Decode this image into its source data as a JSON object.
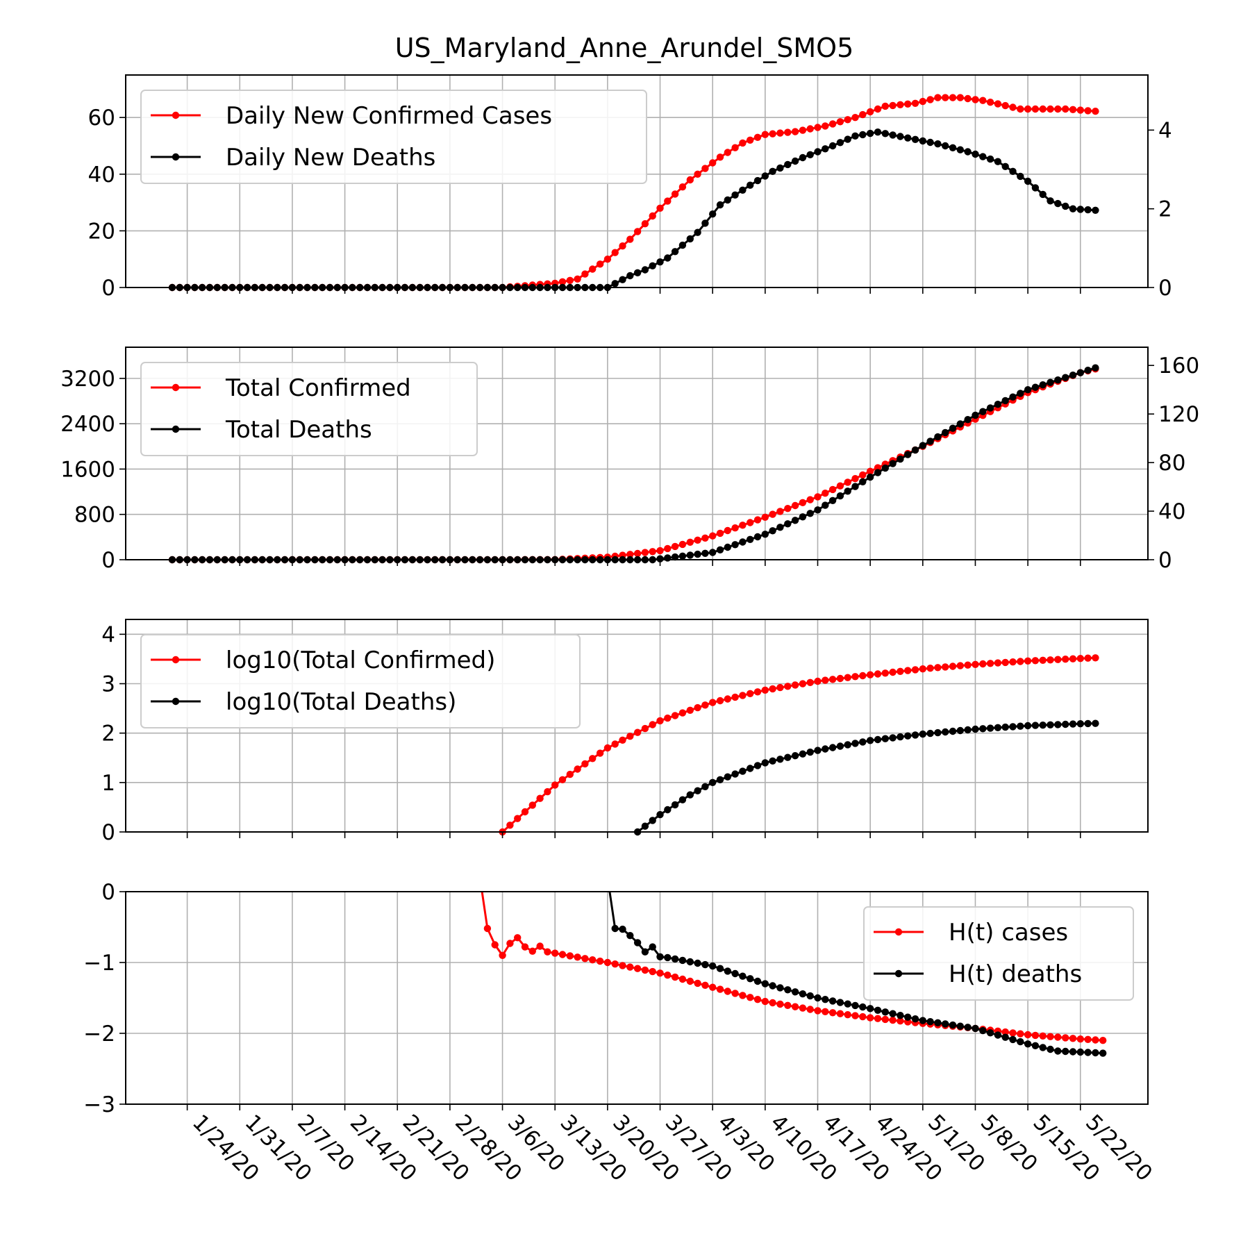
{
  "figure": {
    "title": "US_Maryland_Anne_Arundel_SMO5"
  },
  "chart_data": [
    {
      "type": "line",
      "name": "daily",
      "x_start": "2020-01-22",
      "days": 124,
      "xtick_labels": [
        "1/24/20",
        "1/31/20",
        "2/7/20",
        "2/14/20",
        "2/21/20",
        "2/28/20",
        "3/6/20",
        "3/13/20",
        "3/20/20",
        "3/27/20",
        "4/3/20",
        "4/10/20",
        "4/17/20",
        "4/24/20",
        "5/1/20",
        "5/8/20",
        "5/15/20",
        "5/22/20"
      ],
      "ylim_left": [
        0,
        75
      ],
      "yticks_left": [
        "0",
        "20",
        "40",
        "60"
      ],
      "ylim_right": [
        0,
        5.4
      ],
      "yticks_right": [
        "0",
        "2",
        "4"
      ],
      "legend": {
        "position": "top-left",
        "entries": [
          "Daily New Confirmed Cases",
          "Daily New Deaths"
        ]
      },
      "series": [
        {
          "name": "Daily New Confirmed Cases",
          "color": "#ff0000",
          "axis": "left",
          "knots": [
            [
              "2020-01-22",
              0
            ],
            [
              "2020-03-06",
              0
            ],
            [
              "2020-03-13",
              1.5
            ],
            [
              "2020-03-16",
              3
            ],
            [
              "2020-03-20",
              10
            ],
            [
              "2020-03-23",
              17
            ],
            [
              "2020-03-27",
              28
            ],
            [
              "2020-03-31",
              38
            ],
            [
              "2020-04-04",
              46
            ],
            [
              "2020-04-07",
              51
            ],
            [
              "2020-04-10",
              54
            ],
            [
              "2020-04-14",
              55
            ],
            [
              "2020-04-18",
              57
            ],
            [
              "2020-04-22",
              60
            ],
            [
              "2020-04-26",
              64
            ],
            [
              "2020-04-30",
              65
            ],
            [
              "2020-05-03",
              67
            ],
            [
              "2020-05-06",
              67
            ],
            [
              "2020-05-09",
              66
            ],
            [
              "2020-05-14",
              63
            ],
            [
              "2020-05-20",
              63
            ],
            [
              "2020-05-25",
              62
            ]
          ]
        },
        {
          "name": "Daily New Deaths",
          "color": "#000000",
          "axis": "right",
          "knots": [
            [
              "2020-01-22",
              0
            ],
            [
              "2020-03-20",
              0
            ],
            [
              "2020-03-23",
              0.3
            ],
            [
              "2020-03-25",
              0.45
            ],
            [
              "2020-03-28",
              0.75
            ],
            [
              "2020-04-01",
              1.4
            ],
            [
              "2020-04-04",
              2.1
            ],
            [
              "2020-04-08",
              2.6
            ],
            [
              "2020-04-11",
              2.95
            ],
            [
              "2020-04-15",
              3.3
            ],
            [
              "2020-04-19",
              3.6
            ],
            [
              "2020-04-22",
              3.85
            ],
            [
              "2020-04-25",
              3.95
            ],
            [
              "2020-04-29",
              3.8
            ],
            [
              "2020-05-03",
              3.65
            ],
            [
              "2020-05-07",
              3.45
            ],
            [
              "2020-05-11",
              3.2
            ],
            [
              "2020-05-15",
              2.7
            ],
            [
              "2020-05-18",
              2.2
            ],
            [
              "2020-05-21",
              2.0
            ],
            [
              "2020-05-25",
              1.95
            ]
          ]
        }
      ]
    },
    {
      "type": "line",
      "name": "totals",
      "ylim_left": [
        0,
        3750
      ],
      "yticks_left": [
        "0",
        "800",
        "1600",
        "2400",
        "3200"
      ],
      "ylim_right": [
        0,
        175
      ],
      "yticks_right": [
        "0",
        "40",
        "80",
        "120",
        "160"
      ],
      "legend": {
        "position": "top-left",
        "entries": [
          "Total Confirmed",
          "Total Deaths"
        ]
      },
      "series": [
        {
          "name": "Total Confirmed",
          "color": "#ff0000",
          "axis": "left",
          "knots": [
            [
              "2020-01-22",
              0
            ],
            [
              "2020-03-13",
              2
            ],
            [
              "2020-03-20",
              45
            ],
            [
              "2020-03-27",
              160
            ],
            [
              "2020-04-03",
              420
            ],
            [
              "2020-04-10",
              750
            ],
            [
              "2020-04-17",
              1110
            ],
            [
              "2020-04-24",
              1560
            ],
            [
              "2020-05-01",
              2000
            ],
            [
              "2020-05-08",
              2480
            ],
            [
              "2020-05-15",
              2950
            ],
            [
              "2020-05-22",
              3300
            ],
            [
              "2020-05-25",
              3400
            ]
          ]
        },
        {
          "name": "Total Deaths",
          "color": "#000000",
          "axis": "right",
          "knots": [
            [
              "2020-01-22",
              0
            ],
            [
              "2020-03-26",
              0
            ],
            [
              "2020-03-28",
              1.5
            ],
            [
              "2020-04-03",
              6
            ],
            [
              "2020-04-10",
              21
            ],
            [
              "2020-04-17",
              41
            ],
            [
              "2020-04-24",
              68
            ],
            [
              "2020-05-01",
              94
            ],
            [
              "2020-05-08",
              119
            ],
            [
              "2020-05-15",
              140
            ],
            [
              "2020-05-22",
              154
            ],
            [
              "2020-05-25",
              160
            ]
          ]
        }
      ]
    },
    {
      "type": "line",
      "name": "log10",
      "ylim": [
        0,
        4.3
      ],
      "yticks": [
        "0",
        "1",
        "2",
        "3",
        "4"
      ],
      "legend": {
        "position": "top-left",
        "entries": [
          "log10(Total Confirmed)",
          "log10(Total Deaths)"
        ]
      },
      "series": [
        {
          "name": "log10(Total Confirmed)",
          "color": "#ff0000",
          "start": "2020-03-06",
          "start_value": 0,
          "knots": [
            [
              "2020-03-06",
              0
            ],
            [
              "2020-03-13",
              0.95
            ],
            [
              "2020-03-20",
              1.7
            ],
            [
              "2020-03-27",
              2.25
            ],
            [
              "2020-04-03",
              2.62
            ],
            [
              "2020-04-10",
              2.87
            ],
            [
              "2020-04-17",
              3.05
            ],
            [
              "2020-04-24",
              3.18
            ],
            [
              "2020-05-01",
              3.3
            ],
            [
              "2020-05-08",
              3.39
            ],
            [
              "2020-05-15",
              3.46
            ],
            [
              "2020-05-22",
              3.51
            ],
            [
              "2020-05-25",
              3.53
            ]
          ]
        },
        {
          "name": "log10(Total Deaths)",
          "color": "#000000",
          "start": "2020-03-24",
          "start_value": 0,
          "knots": [
            [
              "2020-03-24",
              0
            ],
            [
              "2020-03-27",
              0.35
            ],
            [
              "2020-03-31",
              0.75
            ],
            [
              "2020-04-03",
              1.0
            ],
            [
              "2020-04-10",
              1.4
            ],
            [
              "2020-04-17",
              1.65
            ],
            [
              "2020-04-24",
              1.85
            ],
            [
              "2020-05-01",
              1.98
            ],
            [
              "2020-05-08",
              2.08
            ],
            [
              "2020-05-15",
              2.15
            ],
            [
              "2020-05-22",
              2.19
            ],
            [
              "2020-05-25",
              2.2
            ]
          ]
        }
      ]
    },
    {
      "type": "line",
      "name": "hazard",
      "ylim": [
        -3,
        0
      ],
      "yticks": [
        "0",
        "−1",
        "−2",
        "−3"
      ],
      "legend": {
        "position": "top-right",
        "entries": [
          "H(t) cases",
          "H(t) deaths"
        ]
      },
      "series": [
        {
          "name": "H(t) cases",
          "color": "#ff0000",
          "points": [
            [
              "2020-03-03",
              0.2
            ],
            [
              "2020-03-04",
              -0.52
            ],
            [
              "2020-03-05",
              -0.75
            ],
            [
              "2020-03-06",
              -0.9
            ],
            [
              "2020-03-07",
              -0.73
            ],
            [
              "2020-03-08",
              -0.65
            ],
            [
              "2020-03-09",
              -0.78
            ],
            [
              "2020-03-10",
              -0.84
            ],
            [
              "2020-03-11",
              -0.77
            ]
          ],
          "knots": [
            [
              "2020-03-12",
              -0.85
            ],
            [
              "2020-03-20",
              -1.0
            ],
            [
              "2020-03-27",
              -1.15
            ],
            [
              "2020-04-03",
              -1.35
            ],
            [
              "2020-04-10",
              -1.55
            ],
            [
              "2020-04-17",
              -1.68
            ],
            [
              "2020-04-24",
              -1.78
            ],
            [
              "2020-05-01",
              -1.86
            ],
            [
              "2020-05-08",
              -1.93
            ],
            [
              "2020-05-15",
              -2.02
            ],
            [
              "2020-05-22",
              -2.08
            ],
            [
              "2020-05-25",
              -2.1
            ]
          ]
        },
        {
          "name": "H(t) deaths",
          "color": "#000000",
          "points": [
            [
              "2020-03-20",
              0.2
            ],
            [
              "2020-03-21",
              -0.52
            ],
            [
              "2020-03-22",
              -0.53
            ],
            [
              "2020-03-23",
              -0.62
            ],
            [
              "2020-03-24",
              -0.72
            ],
            [
              "2020-03-25",
              -0.85
            ],
            [
              "2020-03-26",
              -0.78
            ],
            [
              "2020-03-27",
              -0.92
            ]
          ],
          "knots": [
            [
              "2020-03-28",
              -0.93
            ],
            [
              "2020-04-03",
              -1.05
            ],
            [
              "2020-04-10",
              -1.3
            ],
            [
              "2020-04-17",
              -1.5
            ],
            [
              "2020-04-24",
              -1.65
            ],
            [
              "2020-05-01",
              -1.82
            ],
            [
              "2020-05-08",
              -1.93
            ],
            [
              "2020-05-15",
              -2.15
            ],
            [
              "2020-05-19",
              -2.25
            ],
            [
              "2020-05-25",
              -2.28
            ]
          ]
        }
      ]
    }
  ]
}
